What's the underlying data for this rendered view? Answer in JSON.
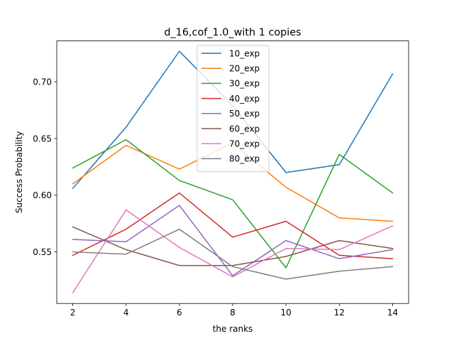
{
  "chart_data": {
    "type": "line",
    "title": "d_16,cof_1.0_with 1 copies",
    "xlabel": "the ranks",
    "ylabel": "Success Probability",
    "x": [
      2,
      4,
      6,
      8,
      10,
      12,
      14
    ],
    "xlim": [
      1.4,
      14.6
    ],
    "ylim": [
      0.5045,
      0.7361
    ],
    "xticks": [
      2,
      4,
      6,
      8,
      10,
      12,
      14
    ],
    "yticks": [
      0.55,
      0.6,
      0.65,
      0.7
    ],
    "ytick_labels": [
      "0.55",
      "0.60",
      "0.65",
      "0.70"
    ],
    "grid": false,
    "legend_position": "upper center",
    "series": [
      {
        "name": "10_exp",
        "color": "#1f77b4",
        "values": [
          0.606,
          0.66,
          0.727,
          0.679,
          0.62,
          0.627,
          0.707
        ]
      },
      {
        "name": "20_exp",
        "color": "#ff7f0e",
        "values": [
          0.61,
          0.644,
          0.623,
          0.646,
          0.607,
          0.58,
          0.577
        ]
      },
      {
        "name": "30_exp",
        "color": "#2ca02c",
        "values": [
          0.624,
          0.649,
          0.613,
          0.596,
          0.536,
          0.636,
          0.602
        ]
      },
      {
        "name": "40_exp",
        "color": "#d62728",
        "values": [
          0.547,
          0.57,
          0.602,
          0.563,
          0.577,
          0.547,
          0.544
        ]
      },
      {
        "name": "50_exp",
        "color": "#9467bd",
        "values": [
          0.561,
          0.559,
          0.591,
          0.529,
          0.56,
          0.544,
          0.552
        ]
      },
      {
        "name": "60_exp",
        "color": "#8c564b",
        "values": [
          0.572,
          0.552,
          0.538,
          0.538,
          0.546,
          0.56,
          0.553
        ]
      },
      {
        "name": "70_exp",
        "color": "#e377c2",
        "values": [
          0.514,
          0.587,
          0.554,
          0.528,
          0.553,
          0.552,
          0.573
        ]
      },
      {
        "name": "80_exp",
        "color": "#7f7f7f",
        "values": [
          0.55,
          0.548,
          0.57,
          0.537,
          0.526,
          0.533,
          0.537
        ]
      }
    ]
  }
}
